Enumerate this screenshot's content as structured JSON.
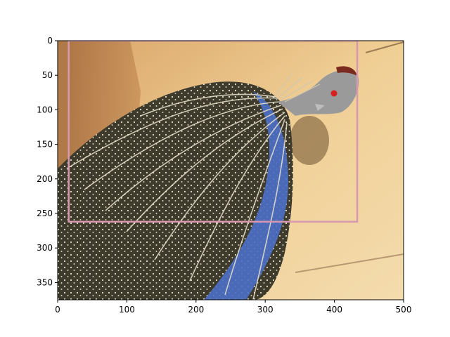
{
  "chart_data": {
    "type": "image",
    "image_width": 500,
    "image_height": 375,
    "xlim": [
      0,
      500
    ],
    "ylim": [
      375,
      0
    ],
    "x_ticks": [
      0,
      100,
      200,
      300,
      400,
      500
    ],
    "y_ticks": [
      0,
      50,
      100,
      150,
      200,
      250,
      300,
      350
    ],
    "bounding_box": {
      "x_min": 16,
      "y_min": 0,
      "x_max": 433,
      "y_max": 262,
      "color": "#d898b0"
    },
    "colors": {
      "rock": "#e6c083",
      "rock_shadow": "#b88458",
      "plumage_dark": "#4a4636",
      "plumage_blue": "#4c6fc4",
      "head": "#8f8f8f",
      "crest": "#7a2a1e",
      "eye": "#d82020"
    }
  }
}
